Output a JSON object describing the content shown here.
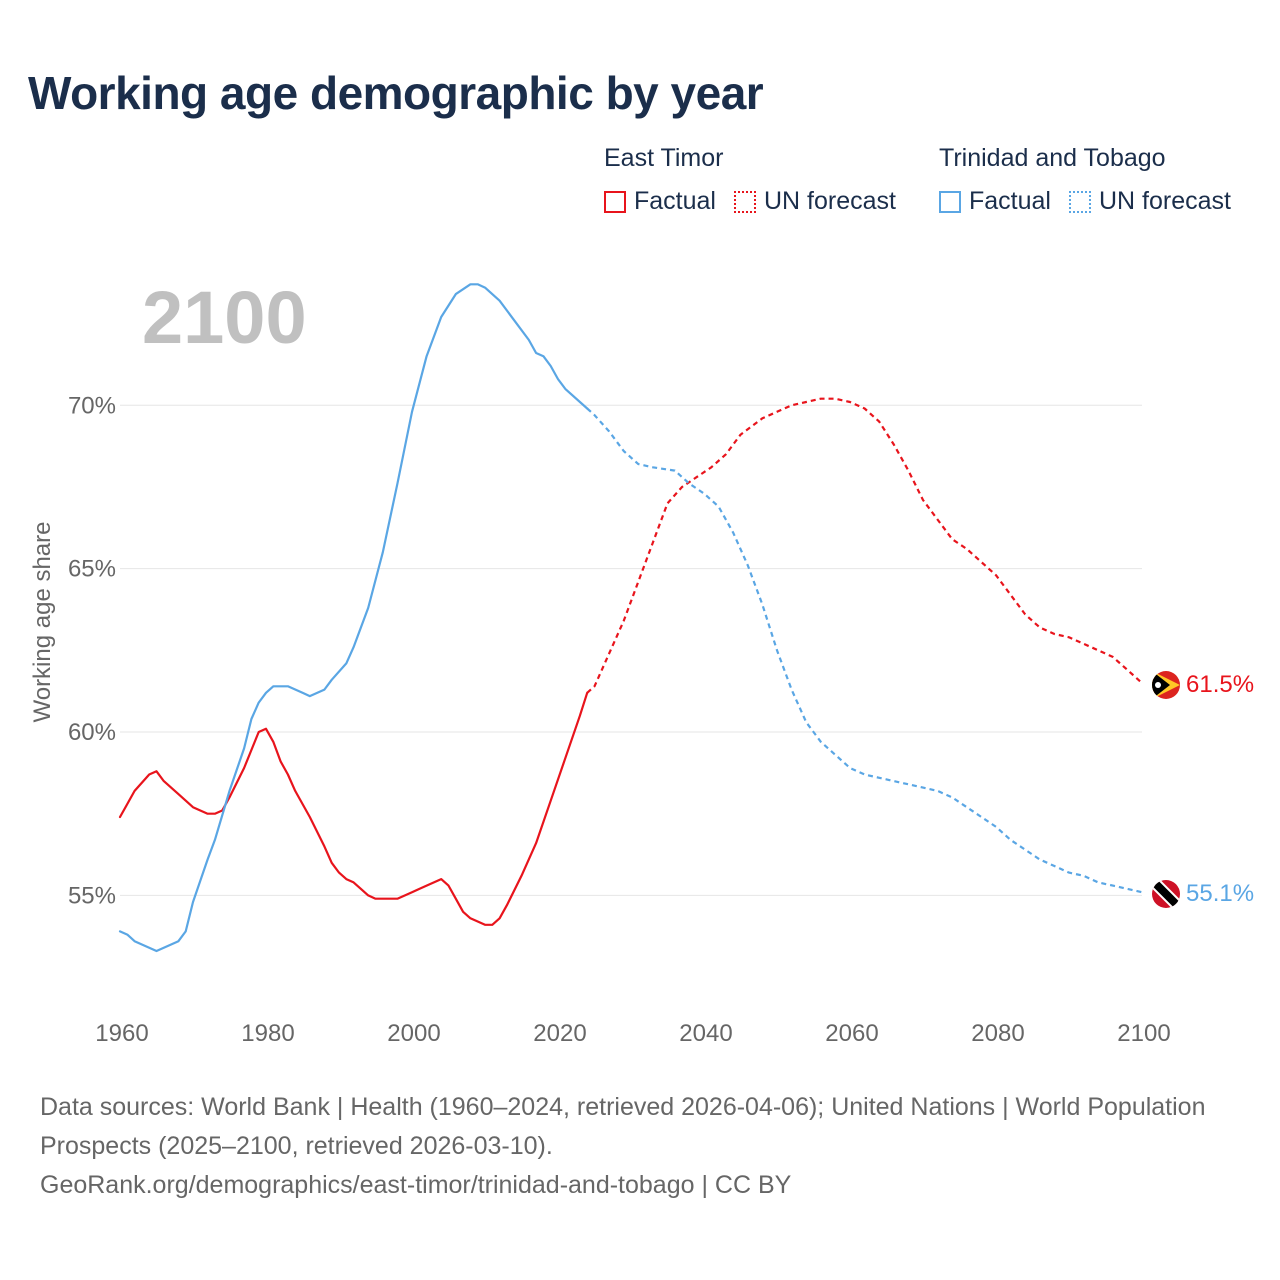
{
  "title": "Working age demographic by year",
  "legend": {
    "groups": [
      {
        "name": "East Timor",
        "color": "#e8141c",
        "factual": "Factual",
        "forecast": "UN forecast"
      },
      {
        "name": "Trinidad and Tobago",
        "color": "#5aa6e4",
        "factual": "Factual",
        "forecast": "UN forecast"
      }
    ]
  },
  "year_overlay": "2100",
  "sources": {
    "line1": "Data sources: World Bank | Health (1960–2024, retrieved 2026-04-06); United Nations | World Population Prospects (2025–2100, retrieved 2026-03-10).",
    "line2": "GeoRank.org/demographics/east-timor/trinidad-and-tobago | CC BY"
  },
  "chart_data": {
    "type": "line",
    "title": "Working age demographic by year",
    "xlabel": "",
    "ylabel": "Working age share",
    "xlim": [
      1960,
      2100
    ],
    "ylim": [
      51.8,
      74.2
    ],
    "x_ticks": [
      1960,
      1980,
      2000,
      2020,
      2040,
      2060,
      2080,
      2100
    ],
    "y_ticks": [
      55,
      60,
      65,
      70
    ],
    "y_tick_labels": [
      "55%",
      "60%",
      "65%",
      "70%"
    ],
    "grid": true,
    "factual_end_year": 2024,
    "series": [
      {
        "name": "East Timor",
        "color": "#e8141c",
        "end_label": "61.5%",
        "points": [
          [
            1960,
            57.4
          ],
          [
            1962,
            58.2
          ],
          [
            1964,
            58.7
          ],
          [
            1965,
            58.8
          ],
          [
            1966,
            58.5
          ],
          [
            1968,
            58.1
          ],
          [
            1970,
            57.7
          ],
          [
            1972,
            57.5
          ],
          [
            1973,
            57.5
          ],
          [
            1974,
            57.6
          ],
          [
            1975,
            58.0
          ],
          [
            1977,
            58.9
          ],
          [
            1979,
            60.0
          ],
          [
            1980,
            60.1
          ],
          [
            1981,
            59.7
          ],
          [
            1982,
            59.1
          ],
          [
            1983,
            58.7
          ],
          [
            1984,
            58.2
          ],
          [
            1986,
            57.4
          ],
          [
            1988,
            56.5
          ],
          [
            1989,
            56.0
          ],
          [
            1990,
            55.7
          ],
          [
            1991,
            55.5
          ],
          [
            1992,
            55.4
          ],
          [
            1994,
            55.0
          ],
          [
            1995,
            54.9
          ],
          [
            1998,
            54.9
          ],
          [
            2000,
            55.1
          ],
          [
            2002,
            55.3
          ],
          [
            2004,
            55.5
          ],
          [
            2005,
            55.3
          ],
          [
            2006,
            54.9
          ],
          [
            2007,
            54.5
          ],
          [
            2008,
            54.3
          ],
          [
            2010,
            54.1
          ],
          [
            2011,
            54.1
          ],
          [
            2012,
            54.3
          ],
          [
            2013,
            54.7
          ],
          [
            2015,
            55.6
          ],
          [
            2017,
            56.6
          ],
          [
            2019,
            57.9
          ],
          [
            2021,
            59.2
          ],
          [
            2023,
            60.5
          ],
          [
            2024,
            61.2
          ],
          [
            2025,
            61.4
          ],
          [
            2027,
            62.4
          ],
          [
            2029,
            63.4
          ],
          [
            2031,
            64.6
          ],
          [
            2033,
            65.8
          ],
          [
            2035,
            67.0
          ],
          [
            2037,
            67.5
          ],
          [
            2039,
            67.8
          ],
          [
            2041,
            68.1
          ],
          [
            2043,
            68.5
          ],
          [
            2045,
            69.1
          ],
          [
            2048,
            69.6
          ],
          [
            2050,
            69.8
          ],
          [
            2052,
            70.0
          ],
          [
            2054,
            70.1
          ],
          [
            2056,
            70.2
          ],
          [
            2058,
            70.2
          ],
          [
            2060,
            70.1
          ],
          [
            2062,
            69.9
          ],
          [
            2064,
            69.5
          ],
          [
            2066,
            68.8
          ],
          [
            2068,
            68.0
          ],
          [
            2070,
            67.1
          ],
          [
            2072,
            66.5
          ],
          [
            2074,
            65.9
          ],
          [
            2076,
            65.6
          ],
          [
            2078,
            65.2
          ],
          [
            2080,
            64.8
          ],
          [
            2082,
            64.2
          ],
          [
            2084,
            63.6
          ],
          [
            2086,
            63.2
          ],
          [
            2088,
            63.0
          ],
          [
            2090,
            62.9
          ],
          [
            2092,
            62.7
          ],
          [
            2094,
            62.5
          ],
          [
            2096,
            62.3
          ],
          [
            2098,
            61.9
          ],
          [
            2100,
            61.5
          ]
        ]
      },
      {
        "name": "Trinidad and Tobago",
        "color": "#5aa6e4",
        "end_label": "55.1%",
        "points": [
          [
            1960,
            53.9
          ],
          [
            1961,
            53.8
          ],
          [
            1962,
            53.6
          ],
          [
            1964,
            53.4
          ],
          [
            1965,
            53.3
          ],
          [
            1966,
            53.4
          ],
          [
            1968,
            53.6
          ],
          [
            1969,
            53.9
          ],
          [
            1970,
            54.8
          ],
          [
            1972,
            56.1
          ],
          [
            1973,
            56.7
          ],
          [
            1975,
            58.2
          ],
          [
            1977,
            59.5
          ],
          [
            1978,
            60.4
          ],
          [
            1979,
            60.9
          ],
          [
            1980,
            61.2
          ],
          [
            1981,
            61.4
          ],
          [
            1983,
            61.4
          ],
          [
            1985,
            61.2
          ],
          [
            1986,
            61.1
          ],
          [
            1988,
            61.3
          ],
          [
            1989,
            61.6
          ],
          [
            1991,
            62.1
          ],
          [
            1992,
            62.6
          ],
          [
            1994,
            63.8
          ],
          [
            1996,
            65.5
          ],
          [
            1998,
            67.6
          ],
          [
            2000,
            69.8
          ],
          [
            2002,
            71.5
          ],
          [
            2004,
            72.7
          ],
          [
            2006,
            73.4
          ],
          [
            2008,
            73.7
          ],
          [
            2009,
            73.7
          ],
          [
            2010,
            73.6
          ],
          [
            2012,
            73.2
          ],
          [
            2014,
            72.6
          ],
          [
            2016,
            72.0
          ],
          [
            2017,
            71.6
          ],
          [
            2018,
            71.5
          ],
          [
            2019,
            71.2
          ],
          [
            2020,
            70.8
          ],
          [
            2021,
            70.5
          ],
          [
            2024,
            69.9
          ],
          [
            2025,
            69.7
          ],
          [
            2027,
            69.2
          ],
          [
            2029,
            68.6
          ],
          [
            2031,
            68.2
          ],
          [
            2033,
            68.1
          ],
          [
            2036,
            68.0
          ],
          [
            2038,
            67.6
          ],
          [
            2040,
            67.3
          ],
          [
            2042,
            66.9
          ],
          [
            2044,
            66.1
          ],
          [
            2046,
            65.1
          ],
          [
            2048,
            63.9
          ],
          [
            2050,
            62.5
          ],
          [
            2052,
            61.3
          ],
          [
            2054,
            60.3
          ],
          [
            2056,
            59.7
          ],
          [
            2058,
            59.3
          ],
          [
            2060,
            58.9
          ],
          [
            2062,
            58.7
          ],
          [
            2064,
            58.6
          ],
          [
            2066,
            58.5
          ],
          [
            2068,
            58.4
          ],
          [
            2070,
            58.3
          ],
          [
            2072,
            58.2
          ],
          [
            2074,
            58.0
          ],
          [
            2076,
            57.7
          ],
          [
            2078,
            57.4
          ],
          [
            2080,
            57.1
          ],
          [
            2082,
            56.7
          ],
          [
            2084,
            56.4
          ],
          [
            2086,
            56.1
          ],
          [
            2088,
            55.9
          ],
          [
            2090,
            55.7
          ],
          [
            2092,
            55.6
          ],
          [
            2094,
            55.4
          ],
          [
            2096,
            55.3
          ],
          [
            2098,
            55.2
          ],
          [
            2100,
            55.1
          ]
        ]
      }
    ]
  }
}
